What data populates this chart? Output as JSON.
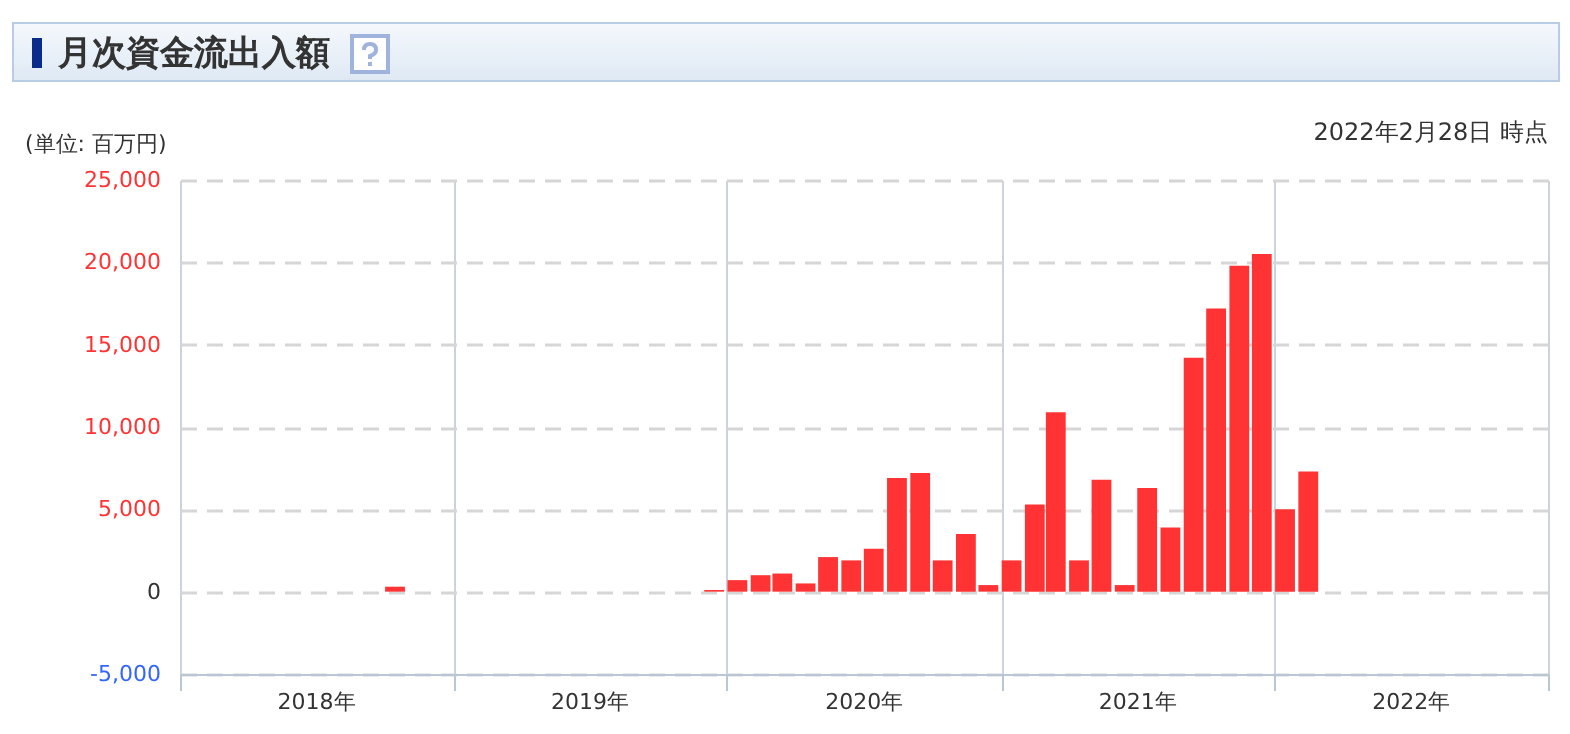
{
  "chart_data": {
    "type": "bar",
    "title": "月次資金流出入額",
    "ylabel": "(単位: 百万円)",
    "annotations": [
      "2022年2月28日 時点"
    ],
    "x": [
      "2018-10-15",
      "2019-12-15",
      "2020-01-15",
      "2020-02-15",
      "2020-03-15",
      "2020-04-15",
      "2020-05-15",
      "2020-06-15",
      "2020-07-15",
      "2020-08-15",
      "2020-09-15",
      "2020-10-15",
      "2020-11-15",
      "2020-12-15",
      "2021-01-15",
      "2021-02-15",
      "2021-03-15",
      "2021-04-15",
      "2021-05-15",
      "2021-06-15",
      "2021-07-15",
      "2021-08-15",
      "2021-09-15",
      "2021-10-15",
      "2021-11-15",
      "2021-12-15",
      "2022-01-15",
      "2022-02-15"
    ],
    "values": [
      300,
      100,
      700,
      1000,
      1100,
      500,
      2100,
      1900,
      2600,
      6900,
      7200,
      1900,
      3500,
      400,
      1900,
      5300,
      10900,
      1900,
      6800,
      400,
      6300,
      3900,
      14200,
      17200,
      19800,
      20500,
      5000,
      7300
    ],
    "color": "#ff3333",
    "xlim": [
      "2018-01",
      "2023-01"
    ],
    "xticks": [
      {
        "value": "2018-01",
        "label": null
      },
      {
        "value": "2018-07",
        "label": "2018年"
      },
      {
        "value": "2019-01",
        "label": null
      },
      {
        "value": "2019-07",
        "label": "2019年"
      },
      {
        "value": "2020-01",
        "label": null
      },
      {
        "value": "2020-07",
        "label": "2020年"
      },
      {
        "value": "2021-01",
        "label": null
      },
      {
        "value": "2021-07",
        "label": "2021年"
      },
      {
        "value": "2022-01",
        "label": null
      },
      {
        "value": "2022-07",
        "label": "2022年"
      },
      {
        "value": "2023-01",
        "label": null
      }
    ],
    "ylim": [
      -5000,
      25000
    ],
    "yticks": [
      {
        "value": -5000,
        "label": "-5,000"
      },
      {
        "value": 0,
        "label": "0"
      },
      {
        "value": 5000,
        "label": "5,000"
      },
      {
        "value": 10000,
        "label": "10,000"
      },
      {
        "value": 15000,
        "label": "15,000"
      },
      {
        "value": 20000,
        "label": "20,000"
      },
      {
        "value": 25000,
        "label": "25,000"
      }
    ],
    "grid": true
  }
}
